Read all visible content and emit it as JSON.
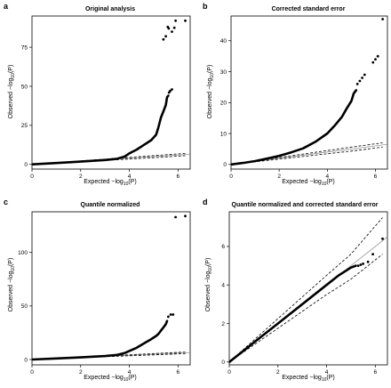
{
  "figure": {
    "xlabel_main": "Expected −log",
    "ylabel_main": "Observed −log",
    "label_sub": "10",
    "label_tail": "(P)"
  },
  "chart_data": [
    {
      "type": "scatter",
      "letter": "a",
      "title": "Original analysis",
      "xlim": [
        0,
        6.5
      ],
      "ylim": [
        -3,
        95
      ],
      "xticks": [
        0,
        2,
        4,
        6
      ],
      "yticks": [
        0,
        25,
        50,
        75
      ],
      "ci_lower": [
        [
          0,
          0
        ],
        [
          5,
          4.3
        ],
        [
          6.3,
          5.6
        ]
      ],
      "ci_upper": [
        [
          0,
          0
        ],
        [
          5,
          5.6
        ],
        [
          6.3,
          7.0
        ]
      ],
      "curve": [
        [
          0,
          0
        ],
        [
          1,
          0.9
        ],
        [
          2,
          1.8
        ],
        [
          3,
          2.8
        ],
        [
          3.5,
          3.6
        ],
        [
          3.8,
          5
        ],
        [
          4.0,
          7
        ],
        [
          4.3,
          9.5
        ],
        [
          4.6,
          12.5
        ],
        [
          4.9,
          15.5
        ],
        [
          5.1,
          19
        ],
        [
          5.2,
          24
        ],
        [
          5.3,
          30
        ],
        [
          5.4,
          34
        ],
        [
          5.5,
          38
        ],
        [
          5.55,
          43
        ],
        [
          5.6,
          44
        ]
      ],
      "outliers": [
        [
          5.63,
          46
        ],
        [
          5.68,
          47
        ],
        [
          5.75,
          48
        ],
        [
          5.4,
          80
        ],
        [
          5.5,
          82
        ],
        [
          5.58,
          88
        ],
        [
          5.62,
          87
        ],
        [
          5.75,
          85
        ],
        [
          5.85,
          87.5
        ],
        [
          6.3,
          92
        ],
        [
          5.9,
          92
        ]
      ]
    },
    {
      "type": "scatter",
      "letter": "b",
      "title": "Corrected standard error",
      "xlim": [
        0,
        6.5
      ],
      "ylim": [
        -1.5,
        48
      ],
      "xticks": [
        0,
        2,
        4,
        6
      ],
      "yticks": [
        0,
        10,
        20,
        30,
        40
      ],
      "ci_lower": [
        [
          0,
          0
        ],
        [
          5,
          4.3
        ],
        [
          6.3,
          5.6
        ]
      ],
      "ci_upper": [
        [
          0,
          0
        ],
        [
          5,
          5.6
        ],
        [
          6.3,
          7.0
        ]
      ],
      "curve": [
        [
          0,
          0
        ],
        [
          0.5,
          0.5
        ],
        [
          1,
          1.1
        ],
        [
          1.5,
          1.9
        ],
        [
          2,
          2.8
        ],
        [
          2.5,
          3.9
        ],
        [
          3,
          5.2
        ],
        [
          3.5,
          7.3
        ],
        [
          4,
          10
        ],
        [
          4.3,
          12.5
        ],
        [
          4.6,
          15.3
        ],
        [
          4.8,
          18
        ],
        [
          5.0,
          20.5
        ],
        [
          5.1,
          23
        ],
        [
          5.2,
          24
        ]
      ],
      "outliers": [
        [
          5.25,
          26
        ],
        [
          5.35,
          27
        ],
        [
          5.45,
          28
        ],
        [
          5.55,
          29
        ],
        [
          5.9,
          33
        ],
        [
          6.0,
          34
        ],
        [
          6.1,
          35
        ],
        [
          6.3,
          47
        ]
      ]
    },
    {
      "type": "scatter",
      "letter": "c",
      "title": "Quantile normalized",
      "xlim": [
        0,
        6.5
      ],
      "ylim": [
        -5,
        138
      ],
      "xticks": [
        0,
        2,
        4,
        6
      ],
      "yticks": [
        0,
        50,
        100
      ],
      "ci_lower": [
        [
          0,
          0
        ],
        [
          5,
          4.3
        ],
        [
          6.3,
          5.6
        ]
      ],
      "ci_upper": [
        [
          0,
          0
        ],
        [
          5,
          5.6
        ],
        [
          6.3,
          7.0
        ]
      ],
      "curve": [
        [
          0,
          0
        ],
        [
          1,
          1.0
        ],
        [
          2,
          2.0
        ],
        [
          3,
          3.2
        ],
        [
          3.5,
          4.3
        ],
        [
          3.8,
          6
        ],
        [
          4.0,
          8
        ],
        [
          4.3,
          11
        ],
        [
          4.6,
          15
        ],
        [
          4.9,
          19
        ],
        [
          5.1,
          22
        ],
        [
          5.2,
          24
        ],
        [
          5.3,
          27
        ],
        [
          5.4,
          30
        ],
        [
          5.5,
          33
        ],
        [
          5.55,
          36
        ]
      ],
      "outliers": [
        [
          5.6,
          40
        ],
        [
          5.7,
          42
        ],
        [
          5.8,
          42
        ],
        [
          5.9,
          133
        ],
        [
          6.3,
          134
        ]
      ]
    },
    {
      "type": "scatter",
      "letter": "d",
      "title": "Quantile normalized and corrected standard error",
      "xlim": [
        0,
        6.5
      ],
      "ylim": [
        -0.15,
        7.8
      ],
      "xticks": [
        0,
        2,
        4,
        6
      ],
      "yticks": [
        0,
        2,
        4,
        6
      ],
      "ci_lower": [
        [
          0,
          0
        ],
        [
          4,
          3.5
        ],
        [
          5,
          4.3
        ],
        [
          6.3,
          5.6
        ]
      ],
      "ci_upper": [
        [
          0,
          0
        ],
        [
          4,
          4.5
        ],
        [
          5,
          5.6
        ],
        [
          6.3,
          7.5
        ]
      ],
      "curve": [
        [
          0,
          0
        ],
        [
          1,
          1
        ],
        [
          2,
          2
        ],
        [
          3,
          3
        ],
        [
          4,
          4
        ],
        [
          4.5,
          4.5
        ],
        [
          5.0,
          4.9
        ],
        [
          5.2,
          5.0
        ]
      ],
      "outliers": [
        [
          5.3,
          5.0
        ],
        [
          5.4,
          5.05
        ],
        [
          5.5,
          5.1
        ],
        [
          5.7,
          5.2
        ],
        [
          5.9,
          5.6
        ],
        [
          6.3,
          6.4
        ]
      ]
    }
  ]
}
